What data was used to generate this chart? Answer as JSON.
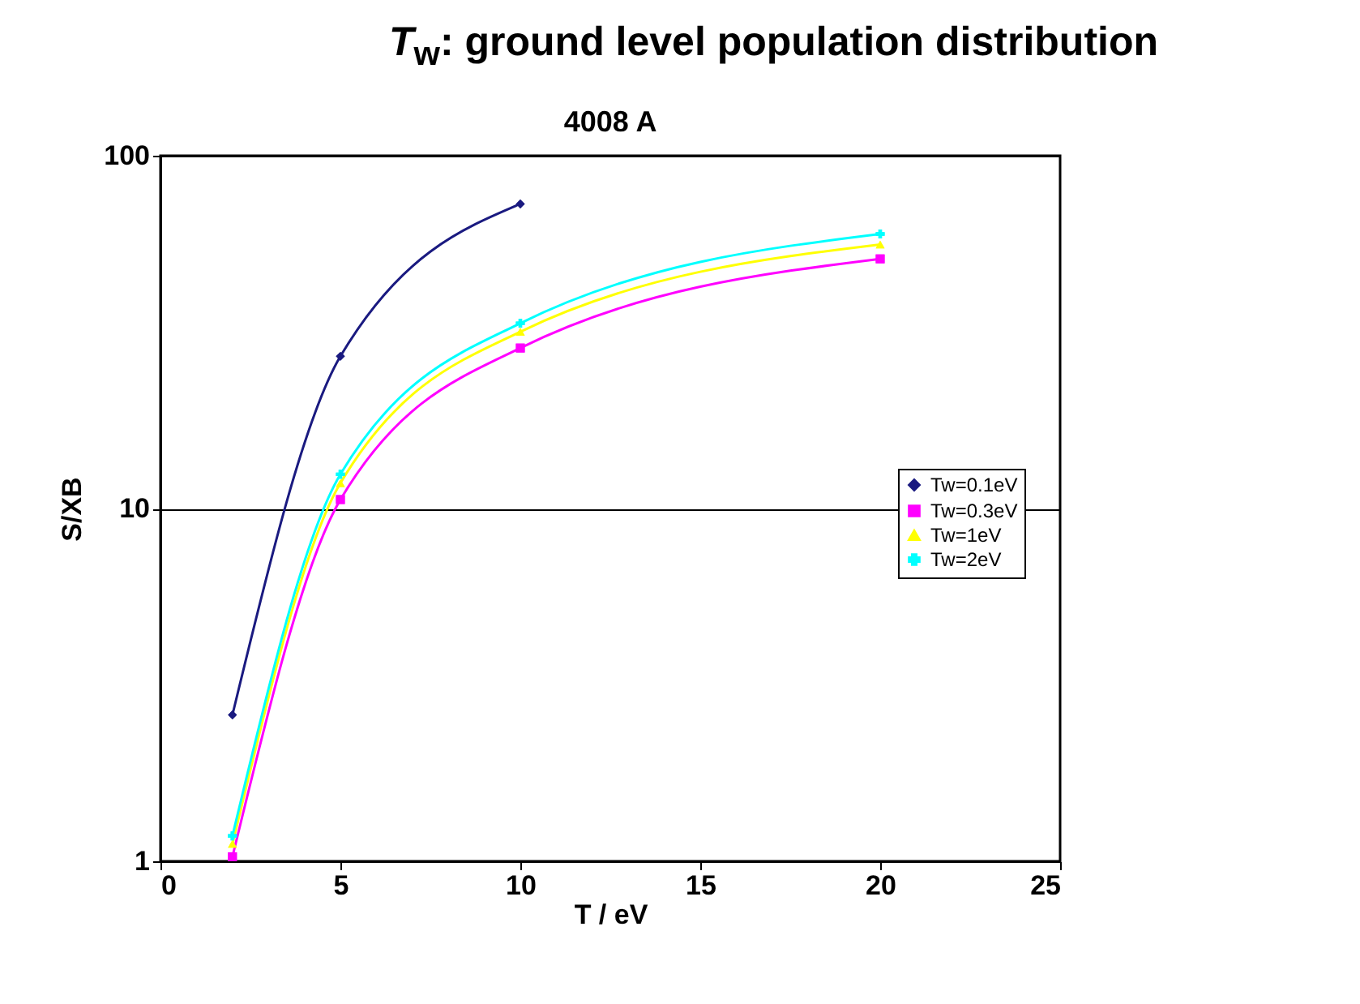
{
  "chart_data": {
    "type": "line",
    "title": "T$_{w}$: ground level population distribution",
    "subtitle": "4008 A",
    "xlabel": "T / eV",
    "ylabel": "S/XB",
    "log": "y",
    "xlim": [
      0,
      25
    ],
    "xticks": [
      0,
      5,
      10,
      15,
      20,
      25
    ],
    "ylim": [
      1,
      100
    ],
    "yticks": [
      1,
      10,
      100
    ],
    "grid": "y",
    "legend": "right",
    "line_style": "solid",
    "series": [
      {
        "name": "Tw=0.1eV",
        "color": "#1a1a80",
        "marker": "diamond",
        "x": [
          2,
          5,
          10
        ],
        "values": [
          2.6,
          27,
          73
        ]
      },
      {
        "name": "Tw=0.3eV",
        "color": "#ff00ff",
        "marker": "square",
        "x": [
          2,
          5,
          10,
          20
        ],
        "values": [
          1.03,
          10.6,
          28.5,
          51
        ]
      },
      {
        "name": "Tw=1eV",
        "color": "#ffff00",
        "marker": "triangle",
        "x": [
          2,
          5,
          10,
          20
        ],
        "values": [
          1.12,
          11.8,
          31.7,
          56
        ]
      },
      {
        "name": "Tw=2eV",
        "color": "#00ffff",
        "marker": "cross",
        "x": [
          2,
          5,
          10,
          20
        ],
        "values": [
          1.18,
          12.5,
          33.5,
          60
        ]
      }
    ]
  }
}
